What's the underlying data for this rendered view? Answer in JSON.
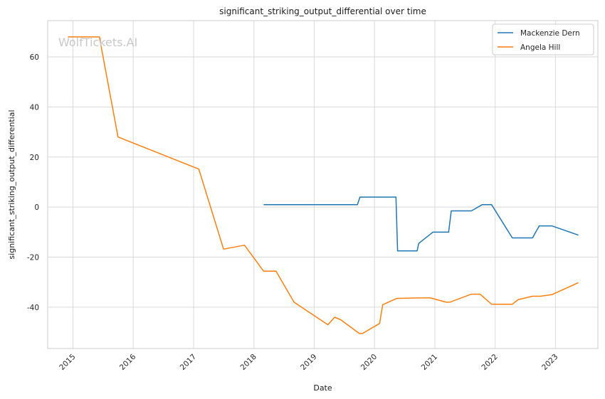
{
  "chart_data": {
    "type": "line",
    "title": "significant_striking_output_differential over time",
    "xlabel": "Date",
    "ylabel": "significant_striking_output_differential",
    "watermark": "WolfTickets.AI",
    "grid": true,
    "legend_position": "top-right",
    "x_axis_type": "date",
    "xlim": [
      "2014-08-01",
      "2023-09-15"
    ],
    "ylim": [
      -56.5,
      74.5
    ],
    "x_ticks": [
      {
        "label": "2015",
        "date": "2015-01-01"
      },
      {
        "label": "2016",
        "date": "2016-01-01"
      },
      {
        "label": "2017",
        "date": "2017-01-01"
      },
      {
        "label": "2018",
        "date": "2018-01-01"
      },
      {
        "label": "2019",
        "date": "2019-01-01"
      },
      {
        "label": "2020",
        "date": "2020-01-01"
      },
      {
        "label": "2021",
        "date": "2021-01-01"
      },
      {
        "label": "2022",
        "date": "2022-01-01"
      },
      {
        "label": "2023",
        "date": "2023-01-01"
      }
    ],
    "y_ticks": [
      -40,
      -20,
      0,
      20,
      40,
      60
    ],
    "series": [
      {
        "name": "Mackenzie Dern",
        "color": "#1f77b4",
        "points": [
          {
            "x": "2018-03-01",
            "y": 1
          },
          {
            "x": "2019-09-20",
            "y": 1
          },
          {
            "x": "2019-10-05",
            "y": 4
          },
          {
            "x": "2020-05-10",
            "y": 4
          },
          {
            "x": "2020-05-20",
            "y": -17.5
          },
          {
            "x": "2020-09-15",
            "y": -17.5
          },
          {
            "x": "2020-09-25",
            "y": -14.5
          },
          {
            "x": "2020-12-20",
            "y": -10
          },
          {
            "x": "2021-03-25",
            "y": -10
          },
          {
            "x": "2021-04-10",
            "y": -1.5
          },
          {
            "x": "2021-08-10",
            "y": -1.5
          },
          {
            "x": "2021-10-15",
            "y": 1
          },
          {
            "x": "2021-12-10",
            "y": 1
          },
          {
            "x": "2022-04-15",
            "y": -12.3
          },
          {
            "x": "2022-08-15",
            "y": -12.3
          },
          {
            "x": "2022-09-25",
            "y": -7.5
          },
          {
            "x": "2022-12-10",
            "y": -7.5
          },
          {
            "x": "2023-05-20",
            "y": -11.2
          }
        ]
      },
      {
        "name": "Angela Hill",
        "color": "#ff7f0e",
        "points": [
          {
            "x": "2014-12-01",
            "y": 68
          },
          {
            "x": "2015-06-10",
            "y": 68
          },
          {
            "x": "2015-10-01",
            "y": 28
          },
          {
            "x": "2017-02-01",
            "y": 15.2
          },
          {
            "x": "2017-07-01",
            "y": -16.8
          },
          {
            "x": "2017-11-05",
            "y": -15.2
          },
          {
            "x": "2018-03-01",
            "y": -25.6
          },
          {
            "x": "2018-05-15",
            "y": -25.6
          },
          {
            "x": "2018-09-01",
            "y": -38
          },
          {
            "x": "2019-03-25",
            "y": -47
          },
          {
            "x": "2019-05-05",
            "y": -44
          },
          {
            "x": "2019-06-10",
            "y": -45
          },
          {
            "x": "2019-10-01",
            "y": -50.5
          },
          {
            "x": "2019-10-20",
            "y": -50.5
          },
          {
            "x": "2020-02-01",
            "y": -46.5
          },
          {
            "x": "2020-02-20",
            "y": -39
          },
          {
            "x": "2020-05-15",
            "y": -36.5
          },
          {
            "x": "2020-09-15",
            "y": -36.3
          },
          {
            "x": "2020-12-05",
            "y": -36.3
          },
          {
            "x": "2021-03-10",
            "y": -38
          },
          {
            "x": "2021-04-01",
            "y": -38
          },
          {
            "x": "2021-08-10",
            "y": -34.8
          },
          {
            "x": "2021-10-01",
            "y": -34.8
          },
          {
            "x": "2021-12-10",
            "y": -38.8
          },
          {
            "x": "2022-04-15",
            "y": -38.8
          },
          {
            "x": "2022-05-20",
            "y": -37
          },
          {
            "x": "2022-08-15",
            "y": -35.6
          },
          {
            "x": "2022-10-01",
            "y": -35.6
          },
          {
            "x": "2022-12-10",
            "y": -35
          },
          {
            "x": "2023-05-20",
            "y": -30.2
          }
        ]
      }
    ]
  }
}
